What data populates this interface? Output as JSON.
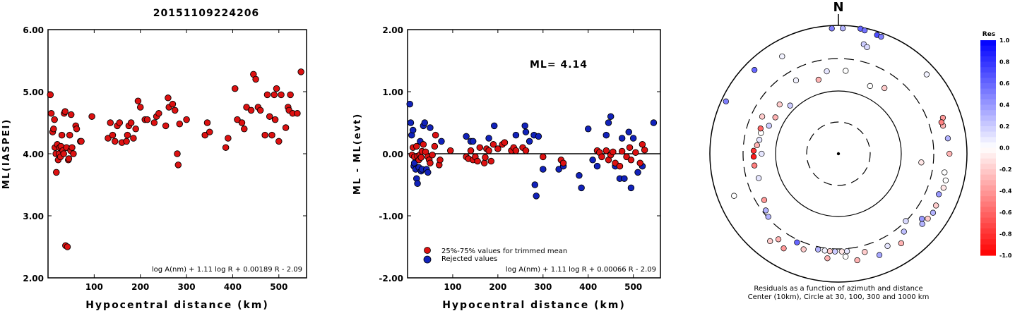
{
  "title": "20151109224206",
  "chart_data": [
    {
      "type": "scatter",
      "ylabel": "ML(IASPEI)",
      "xlabel": "Hypocentral distance (km)",
      "xlim": [
        0,
        560
      ],
      "ylim": [
        2.0,
        6.0
      ],
      "xticks": [
        "100",
        "200",
        "300",
        "400",
        "500"
      ],
      "yticks": [
        "2.00",
        "3.00",
        "4.00",
        "5.00",
        "6.00"
      ],
      "formula": "log A(nm) + 1.11 log R + 0.00189 R - 2.09",
      "point_color": "#dd1111",
      "x": [
        5,
        7,
        10,
        12,
        14,
        15,
        17,
        18,
        20,
        22,
        24,
        25,
        27,
        28,
        30,
        32,
        34,
        35,
        37,
        38,
        40,
        42,
        44,
        45,
        47,
        49,
        50,
        52,
        55,
        60,
        62,
        70,
        72,
        95,
        130,
        135,
        140,
        145,
        150,
        155,
        160,
        170,
        172,
        175,
        180,
        185,
        190,
        195,
        200,
        210,
        215,
        230,
        235,
        240,
        255,
        260,
        262,
        270,
        275,
        280,
        282,
        285,
        300,
        340,
        345,
        350,
        385,
        390,
        405,
        410,
        420,
        425,
        430,
        440,
        445,
        450,
        455,
        460,
        470,
        475,
        480,
        485,
        490,
        492,
        495,
        500,
        505,
        515,
        520,
        522,
        525,
        530,
        540,
        548
      ],
      "y": [
        4.95,
        4.65,
        4.35,
        4.4,
        4.55,
        4.1,
        4.0,
        3.7,
        4.15,
        3.9,
        4.0,
        4.1,
        3.95,
        4.12,
        4.3,
        4.05,
        4.0,
        4.65,
        4.68,
        2.52,
        4.1,
        2.5,
        3.9,
        3.92,
        4.3,
        4.05,
        4.63,
        4.1,
        4.0,
        4.45,
        4.4,
        4.2,
        4.2,
        4.6,
        4.25,
        4.5,
        4.3,
        4.2,
        4.45,
        4.5,
        4.18,
        4.2,
        4.3,
        4.45,
        4.5,
        4.25,
        4.4,
        4.85,
        4.75,
        4.55,
        4.55,
        4.5,
        4.6,
        4.65,
        4.45,
        4.9,
        4.75,
        4.8,
        4.7,
        4.0,
        3.82,
        4.48,
        4.55,
        4.3,
        4.5,
        4.35,
        4.1,
        4.25,
        5.05,
        4.55,
        4.5,
        4.4,
        4.75,
        4.7,
        5.28,
        5.2,
        4.75,
        4.7,
        4.3,
        4.95,
        4.6,
        4.3,
        4.95,
        4.55,
        5.05,
        4.2,
        4.95,
        4.42,
        4.75,
        4.7,
        4.95,
        4.65,
        4.65,
        5.32
      ]
    },
    {
      "type": "scatter",
      "ylabel": "ML - ML(evt)",
      "xlabel": "Hypocentral distance (km)",
      "xlim": [
        0,
        560
      ],
      "ylim": [
        -2.0,
        2.0
      ],
      "xticks": [
        "100",
        "200",
        "300",
        "400",
        "500"
      ],
      "yticks": [
        "-2.00",
        "-1.00",
        "0.00",
        "1.00",
        "2.00"
      ],
      "annotation": "ML= 4.14",
      "formula": "log A(nm) + 1.11 log R + 0.00066 R - 2.09",
      "legend": [
        {
          "label": "25%-75% values for trimmed mean",
          "color": "#dd1111"
        },
        {
          "label": "Rejected values",
          "color": "#1122bb"
        }
      ],
      "series": [
        {
          "color": "#dd1111",
          "x": [
            10,
            12,
            15,
            20,
            22,
            25,
            27,
            30,
            32,
            35,
            40,
            45,
            48,
            50,
            55,
            60,
            62,
            70,
            72,
            95,
            130,
            135,
            140,
            145,
            150,
            155,
            160,
            170,
            172,
            175,
            180,
            185,
            190,
            200,
            210,
            215,
            230,
            235,
            240,
            255,
            262,
            300,
            340,
            345,
            420,
            425,
            430,
            440,
            445,
            450,
            455,
            460,
            470,
            475,
            485,
            492,
            495,
            505,
            515,
            520,
            525
          ],
          "y": [
            -0.02,
            0.1,
            -0.05,
            0.12,
            -0.04,
            -0.1,
            -0.02,
            -0.06,
            0.04,
            0.15,
            0.03,
            -0.05,
            -0.1,
            -0.15,
            -0.02,
            0.12,
            0.3,
            -0.18,
            -0.1,
            0.05,
            -0.05,
            -0.08,
            0.05,
            -0.1,
            -0.05,
            -0.12,
            0.1,
            -0.15,
            -0.06,
            0.08,
            0.05,
            -0.12,
            0.15,
            0.08,
            0.15,
            0.18,
            0.05,
            0.1,
            0.05,
            0.1,
            0.05,
            -0.05,
            -0.1,
            -0.15,
            0.05,
            0.02,
            -0.05,
            0.05,
            -0.1,
            -0.02,
            0.03,
            -0.15,
            -0.2,
            0.04,
            -0.05,
            0.1,
            -0.1,
            0.02,
            -0.15,
            0.15,
            0.06
          ]
        },
        {
          "color": "#1122bb",
          "x": [
            5,
            7,
            9,
            12,
            14,
            15,
            18,
            20,
            22,
            25,
            28,
            30,
            32,
            35,
            38,
            42,
            45,
            50,
            75,
            130,
            140,
            145,
            180,
            192,
            240,
            260,
            262,
            270,
            280,
            282,
            285,
            290,
            300,
            335,
            345,
            380,
            385,
            400,
            410,
            420,
            440,
            445,
            450,
            460,
            470,
            475,
            480,
            490,
            495,
            500,
            510,
            520,
            545
          ],
          "y": [
            0.8,
            0.5,
            0.3,
            0.38,
            -0.2,
            -0.15,
            -0.25,
            -0.4,
            -0.48,
            -0.22,
            0.2,
            -0.28,
            -0.25,
            0.45,
            0.5,
            -0.25,
            -0.3,
            0.42,
            0.2,
            0.28,
            0.2,
            0.2,
            0.25,
            0.45,
            0.3,
            0.45,
            0.35,
            0.2,
            0.3,
            -0.5,
            -0.68,
            0.28,
            -0.25,
            -0.25,
            -0.2,
            -0.35,
            -0.55,
            0.4,
            -0.1,
            -0.2,
            0.3,
            0.5,
            0.6,
            -0.2,
            -0.4,
            0.25,
            -0.4,
            0.35,
            -0.55,
            0.25,
            -0.3,
            -0.2,
            0.5
          ]
        }
      ]
    },
    {
      "type": "polar-scatter",
      "north_label": "N",
      "caption_line1": "Residuals as a function of azimuth and distance",
      "caption_line2": "Center (10km), Circle at 30, 100, 300 and 1000 km",
      "colorbar_title": "Res",
      "colorbar_ticks": [
        "1.0",
        "0.8",
        "0.6",
        "0.4",
        "0.2",
        "0.0",
        "-0.2",
        "-0.4",
        "-0.6",
        "-0.8",
        "-1.0"
      ],
      "points": [
        {
          "az": -3,
          "dist": 900,
          "res": 0.5
        },
        {
          "az": 2,
          "dist": 900,
          "res": 0.3
        },
        {
          "az": 10,
          "dist": 950,
          "res": 0.6
        },
        {
          "az": 12,
          "dist": 920,
          "res": 0.55
        },
        {
          "az": 18,
          "dist": 880,
          "res": 0.7
        },
        {
          "az": 20,
          "dist": 870,
          "res": 0.5
        },
        {
          "az": 13,
          "dist": 560,
          "res": 0.2
        },
        {
          "az": 15,
          "dist": 520,
          "res": 0.15
        },
        {
          "az": -45,
          "dist": 700,
          "res": 0.6
        },
        {
          "az": -30,
          "dist": 560,
          "res": 0.05
        },
        {
          "az": -65,
          "dist": 850,
          "res": 0.5
        },
        {
          "az": 48,
          "dist": 700,
          "res": 0.05
        },
        {
          "az": 71,
          "dist": 520,
          "res": -0.4
        },
        {
          "az": 75,
          "dist": 480,
          "res": -0.3
        },
        {
          "az": 73,
          "dist": 470,
          "res": -0.5
        },
        {
          "az": 82,
          "dist": 520,
          "res": 0.3
        },
        {
          "az": 90,
          "dist": 530,
          "res": -0.3
        },
        {
          "az": 96,
          "dist": 200,
          "res": -0.1
        },
        {
          "az": 100,
          "dist": 470,
          "res": 0.0
        },
        {
          "az": 104,
          "dist": 520,
          "res": 0.0
        },
        {
          "az": 108,
          "dist": 520,
          "res": -0.1
        },
        {
          "az": 112,
          "dist": 480,
          "res": 0.4
        },
        {
          "az": 118,
          "dist": 520,
          "res": -0.2
        },
        {
          "az": 122,
          "dist": 540,
          "res": 0.3
        },
        {
          "az": 126,
          "dist": 520,
          "res": -0.2
        },
        {
          "az": 130,
          "dist": 500,
          "res": 0.3
        },
        {
          "az": 128,
          "dist": 440,
          "res": 0.4
        },
        {
          "az": 140,
          "dist": 380,
          "res": 0.25
        },
        {
          "az": 135,
          "dist": 300,
          "res": 0.15
        },
        {
          "az": 145,
          "dist": 500,
          "res": -0.3
        },
        {
          "az": 152,
          "dist": 420,
          "res": 0.1
        },
        {
          "az": 158,
          "dist": 500,
          "res": 0.35
        },
        {
          "az": 165,
          "dist": 380,
          "res": -0.2
        },
        {
          "az": 170,
          "dist": 480,
          "res": -0.3
        },
        {
          "az": 175,
          "dist": 330,
          "res": 0.1
        },
        {
          "az": 178,
          "dist": 330,
          "res": -0.1
        },
        {
          "az": 182,
          "dist": 330,
          "res": 0.2
        },
        {
          "az": 185,
          "dist": 330,
          "res": -0.2
        },
        {
          "az": 188,
          "dist": 330,
          "res": 0.05
        },
        {
          "az": 192,
          "dist": 330,
          "res": 0.3
        },
        {
          "az": 176,
          "dist": 400,
          "res": 0.0
        },
        {
          "az": 186,
          "dist": 430,
          "res": -0.3
        },
        {
          "az": 200,
          "dist": 380,
          "res": -0.2
        },
        {
          "az": 210,
          "dist": 500,
          "res": -0.4
        },
        {
          "az": 215,
          "dist": 420,
          "res": -0.3
        },
        {
          "az": 205,
          "dist": 330,
          "res": 0.6
        },
        {
          "az": 218,
          "dist": 530,
          "res": -0.2
        },
        {
          "az": 228,
          "dist": 290,
          "res": 0.3
        },
        {
          "az": 232,
          "dist": 270,
          "res": 0.3
        },
        {
          "az": 238,
          "dist": 230,
          "res": -0.4
        },
        {
          "az": 248,
          "dist": 560,
          "res": 0.0
        },
        {
          "az": 253,
          "dist": 200,
          "res": 0.1
        },
        {
          "az": 262,
          "dist": 210,
          "res": -0.5
        },
        {
          "az": 268,
          "dist": 210,
          "res": -0.9
        },
        {
          "az": 272,
          "dist": 210,
          "res": -0.8
        },
        {
          "az": 270,
          "dist": 160,
          "res": 0.1
        },
        {
          "az": 276,
          "dist": 190,
          "res": -0.3
        },
        {
          "az": 280,
          "dist": 180,
          "res": 0.1
        },
        {
          "az": 285,
          "dist": 180,
          "res": 0.0
        },
        {
          "az": 288,
          "dist": 190,
          "res": -0.6
        },
        {
          "az": 292,
          "dist": 150,
          "res": 0.2
        },
        {
          "az": 296,
          "dist": 210,
          "res": -0.2
        },
        {
          "az": 300,
          "dist": 140,
          "res": -0.3
        },
        {
          "az": 310,
          "dist": 160,
          "res": -0.2
        },
        {
          "az": 315,
          "dist": 120,
          "res": 0.2
        },
        {
          "az": 330,
          "dist": 210,
          "res": 0.05
        },
        {
          "az": 345,
          "dist": 160,
          "res": -0.3
        },
        {
          "az": 352,
          "dist": 200,
          "res": 0.1
        },
        {
          "az": 5,
          "dist": 200,
          "res": 0.0
        },
        {
          "az": 25,
          "dist": 150,
          "res": 0.0
        },
        {
          "az": 35,
          "dist": 180,
          "res": -0.2
        }
      ]
    }
  ]
}
